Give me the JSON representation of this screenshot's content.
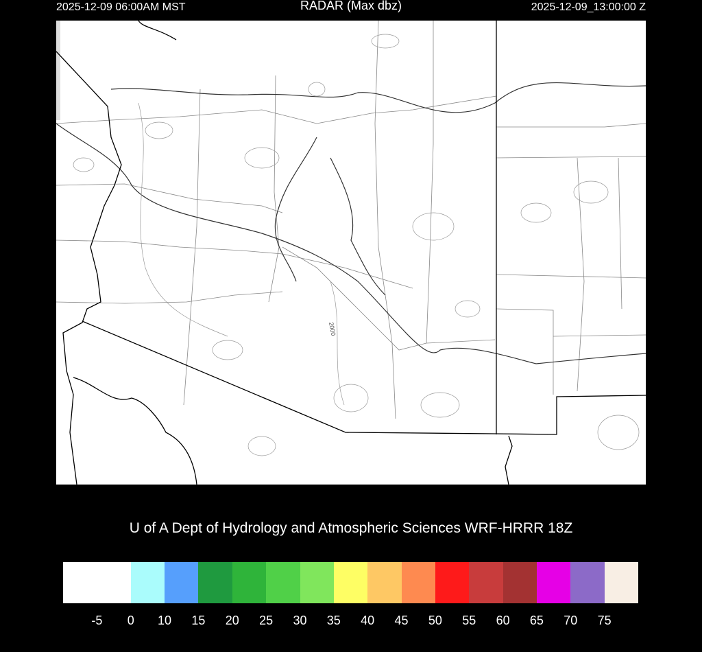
{
  "header": {
    "local_time": "2025-12-09 06:00AM MST",
    "title": "RADAR (Max dbz)",
    "valid_time": "2025-12-09_13:00:00 Z"
  },
  "map": {
    "contour_label": "2000",
    "radar_echoes": "none"
  },
  "credit": "U of A Dept of Hydrology and Atmospheric Sciences WRF-HRRR 18Z",
  "colorbar": {
    "colors": [
      "#ffffff",
      "#ffffff",
      "#aafcfc",
      "#569ffc",
      "#1f9a3f",
      "#2fb43a",
      "#50d048",
      "#80e65c",
      "#fefe64",
      "#fec864",
      "#fe8a50",
      "#fe1a1a",
      "#c83c3c",
      "#a33232",
      "#e600e6",
      "#8c6ac8",
      "#f8eee4"
    ],
    "labels": [
      "-5",
      "0",
      "10",
      "15",
      "20",
      "25",
      "30",
      "35",
      "40",
      "45",
      "50",
      "55",
      "60",
      "65",
      "70",
      "75"
    ]
  }
}
